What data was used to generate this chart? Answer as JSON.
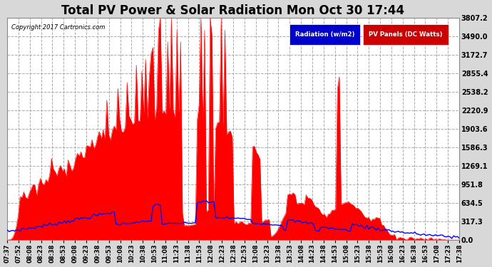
{
  "title": "Total PV Power & Solar Radiation Mon Oct 30 17:44",
  "copyright": "Copyright 2017 Cartronics.com",
  "legend_items": [
    "Radiation (w/m2)",
    "PV Panels (DC Watts)"
  ],
  "legend_bg_colors": [
    "#0000cc",
    "#cc0000"
  ],
  "yticks": [
    0.0,
    317.3,
    634.5,
    951.8,
    1269.1,
    1586.3,
    1903.6,
    2220.9,
    2538.2,
    2855.4,
    3172.7,
    3490.0,
    3807.2
  ],
  "ylim": [
    0.0,
    3807.2
  ],
  "background_color": "#d8d8d8",
  "plot_bg_color": "#ffffff",
  "grid_color": "#aaaaaa",
  "title_fontsize": 12,
  "xtick_labels": [
    "07:37",
    "07:52",
    "08:08",
    "08:23",
    "08:38",
    "08:53",
    "09:08",
    "09:23",
    "09:38",
    "09:53",
    "10:08",
    "10:23",
    "10:38",
    "10:53",
    "11:08",
    "11:23",
    "11:38",
    "11:53",
    "12:08",
    "12:23",
    "12:38",
    "12:53",
    "13:08",
    "13:23",
    "13:38",
    "13:53",
    "14:08",
    "14:23",
    "14:38",
    "14:53",
    "15:08",
    "15:23",
    "15:38",
    "15:53",
    "16:08",
    "16:23",
    "16:38",
    "16:53",
    "17:08",
    "17:23",
    "17:38"
  ],
  "n_points": 246,
  "radiation_color": "#0000ff",
  "pv_color": "#ff0000"
}
